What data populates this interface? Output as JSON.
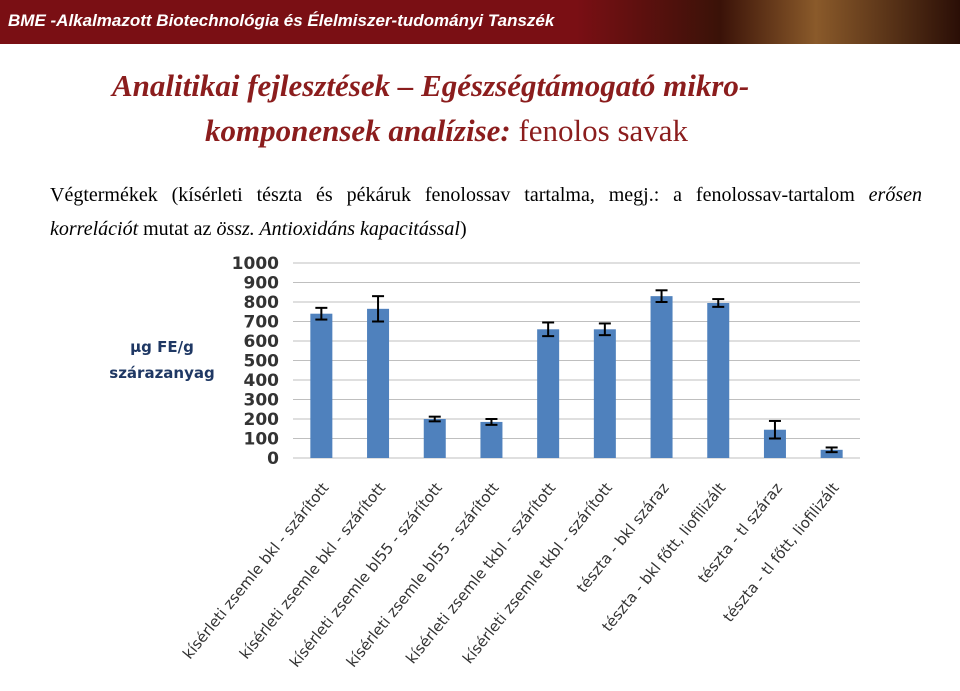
{
  "header": {
    "text": "BME -Alkalmazott Biotechnológia és Élelmiszer-tudományi Tanszék"
  },
  "title": {
    "line1": "Analitikai fejlesztések – Egészségtámogató mikro-",
    "line2": "komponensek analízise:",
    "line2_plain": "fenolos savak"
  },
  "body": {
    "segments": [
      "Végtermékek (kísérleti tészta és pékáruk fenolossav tartalma, megj.: a fenolossav-tartalom ",
      "erősen korrelációt",
      " mutat az ",
      "össz. Antioxidáns kapacitással",
      ")"
    ]
  },
  "chart_data": {
    "type": "bar",
    "ylabel": [
      "µg FE/g",
      "szárazanyag"
    ],
    "categories": [
      "kísérleti zsemle bkl - szárított",
      "kísérleti zsemle bkl - szárított",
      "kísérleti zsemle bl55 - szárított",
      "kísérleti zsemle bl55 - szárított",
      "kísérleti zsemle tkbl - szárított",
      "kísérleti zsemle tkbl - szárított",
      "tészta - bkl száraz",
      "tészta - bkl főtt, liofilizált",
      "tészta - tl száraz",
      "tészta - tl főtt, liofilizált"
    ],
    "values": [
      740,
      765,
      200,
      185,
      660,
      660,
      830,
      795,
      145,
      42
    ],
    "errors": [
      30,
      65,
      12,
      15,
      35,
      30,
      30,
      20,
      45,
      12
    ],
    "color": "#4f81bd",
    "ylim": [
      0,
      1000
    ],
    "yticks": [
      0,
      100,
      200,
      300,
      400,
      500,
      600,
      700,
      800,
      900,
      1000
    ],
    "grid": true
  }
}
